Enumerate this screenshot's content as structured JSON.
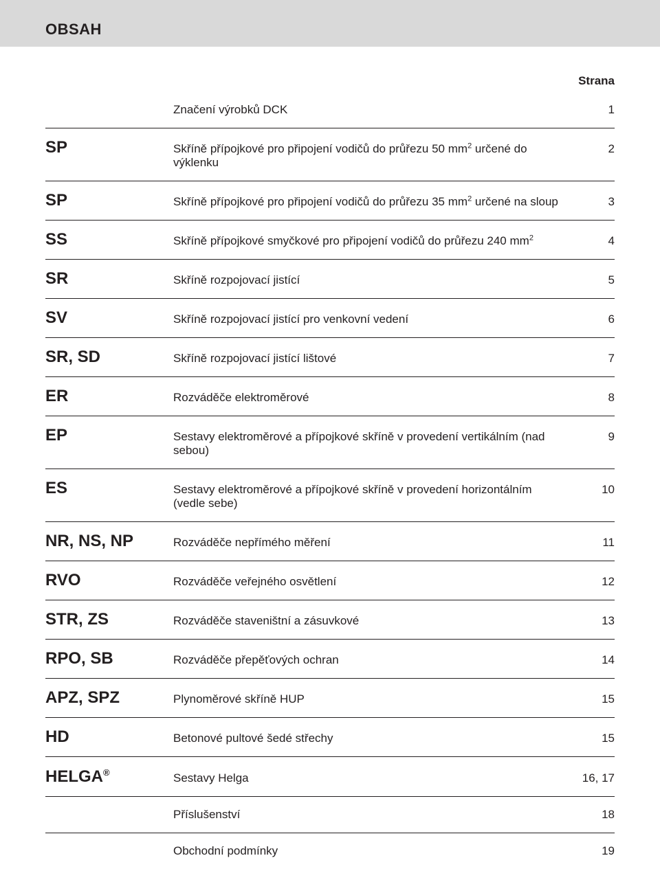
{
  "header": {
    "title": "OBSAH"
  },
  "strana_label": "Strana",
  "intro": {
    "desc": "Značení výrobků DCK",
    "page": "1"
  },
  "rows": [
    {
      "code": "SP",
      "desc_pre": "Skříně přípojkové pro připojení vodičů do průřezu 50 mm",
      "desc_post": " určené do výklenku",
      "sup": "2",
      "page": "2"
    },
    {
      "code": "SP",
      "desc_pre": "Skříně přípojkové pro připojení vodičů do průřezu 35 mm",
      "desc_post": " určené na sloup",
      "sup": "2",
      "page": "3"
    },
    {
      "code": "SS",
      "desc_pre": "Skříně přípojkové smyčkové pro připojení vodičů do průřezu 240 mm",
      "desc_post": "",
      "sup": "2",
      "page": "4"
    },
    {
      "code": "SR",
      "desc": "Skříně rozpojovací jistící",
      "page": "5"
    },
    {
      "code": "SV",
      "desc": "Skříně rozpojovací jistící pro venkovní vedení",
      "page": "6"
    },
    {
      "code": "SR, SD",
      "desc": "Skříně rozpojovací jistící lištové",
      "page": "7"
    },
    {
      "code": "ER",
      "desc": "Rozváděče elektroměrové",
      "page": "8"
    },
    {
      "code": "EP",
      "desc": "Sestavy elektroměrové a přípojkové skříně v provedení vertikálním (nad sebou)",
      "page": "9"
    },
    {
      "code": "ES",
      "desc": "Sestavy elektroměrové a přípojkové skříně v provedení horizontálním (vedle sebe)",
      "page": "10"
    },
    {
      "code": "NR, NS, NP",
      "desc": "Rozváděče nepřímého měření",
      "page": "11"
    },
    {
      "code": "RVO",
      "desc": "Rozváděče veřejného osvětlení",
      "page": "12"
    },
    {
      "code": "STR, ZS",
      "desc": "Rozváděče staveništní a zásuvkové",
      "page": "13"
    },
    {
      "code": "RPO, SB",
      "desc": "Rozváděče přepěťových ochran",
      "page": "14"
    },
    {
      "code": "APZ, SPZ",
      "desc": "Plynoměrové skříně HUP",
      "page": "15"
    },
    {
      "code": "HD",
      "desc": "Betonové pultové šedé střechy",
      "page": "15"
    },
    {
      "code": "HELGA",
      "reg": true,
      "desc": "Sestavy Helga",
      "page": "16, 17"
    },
    {
      "code": "",
      "desc": "Příslušenství",
      "page": "18"
    },
    {
      "code": "",
      "desc": "Obchodní podmínky",
      "page": "19"
    }
  ]
}
